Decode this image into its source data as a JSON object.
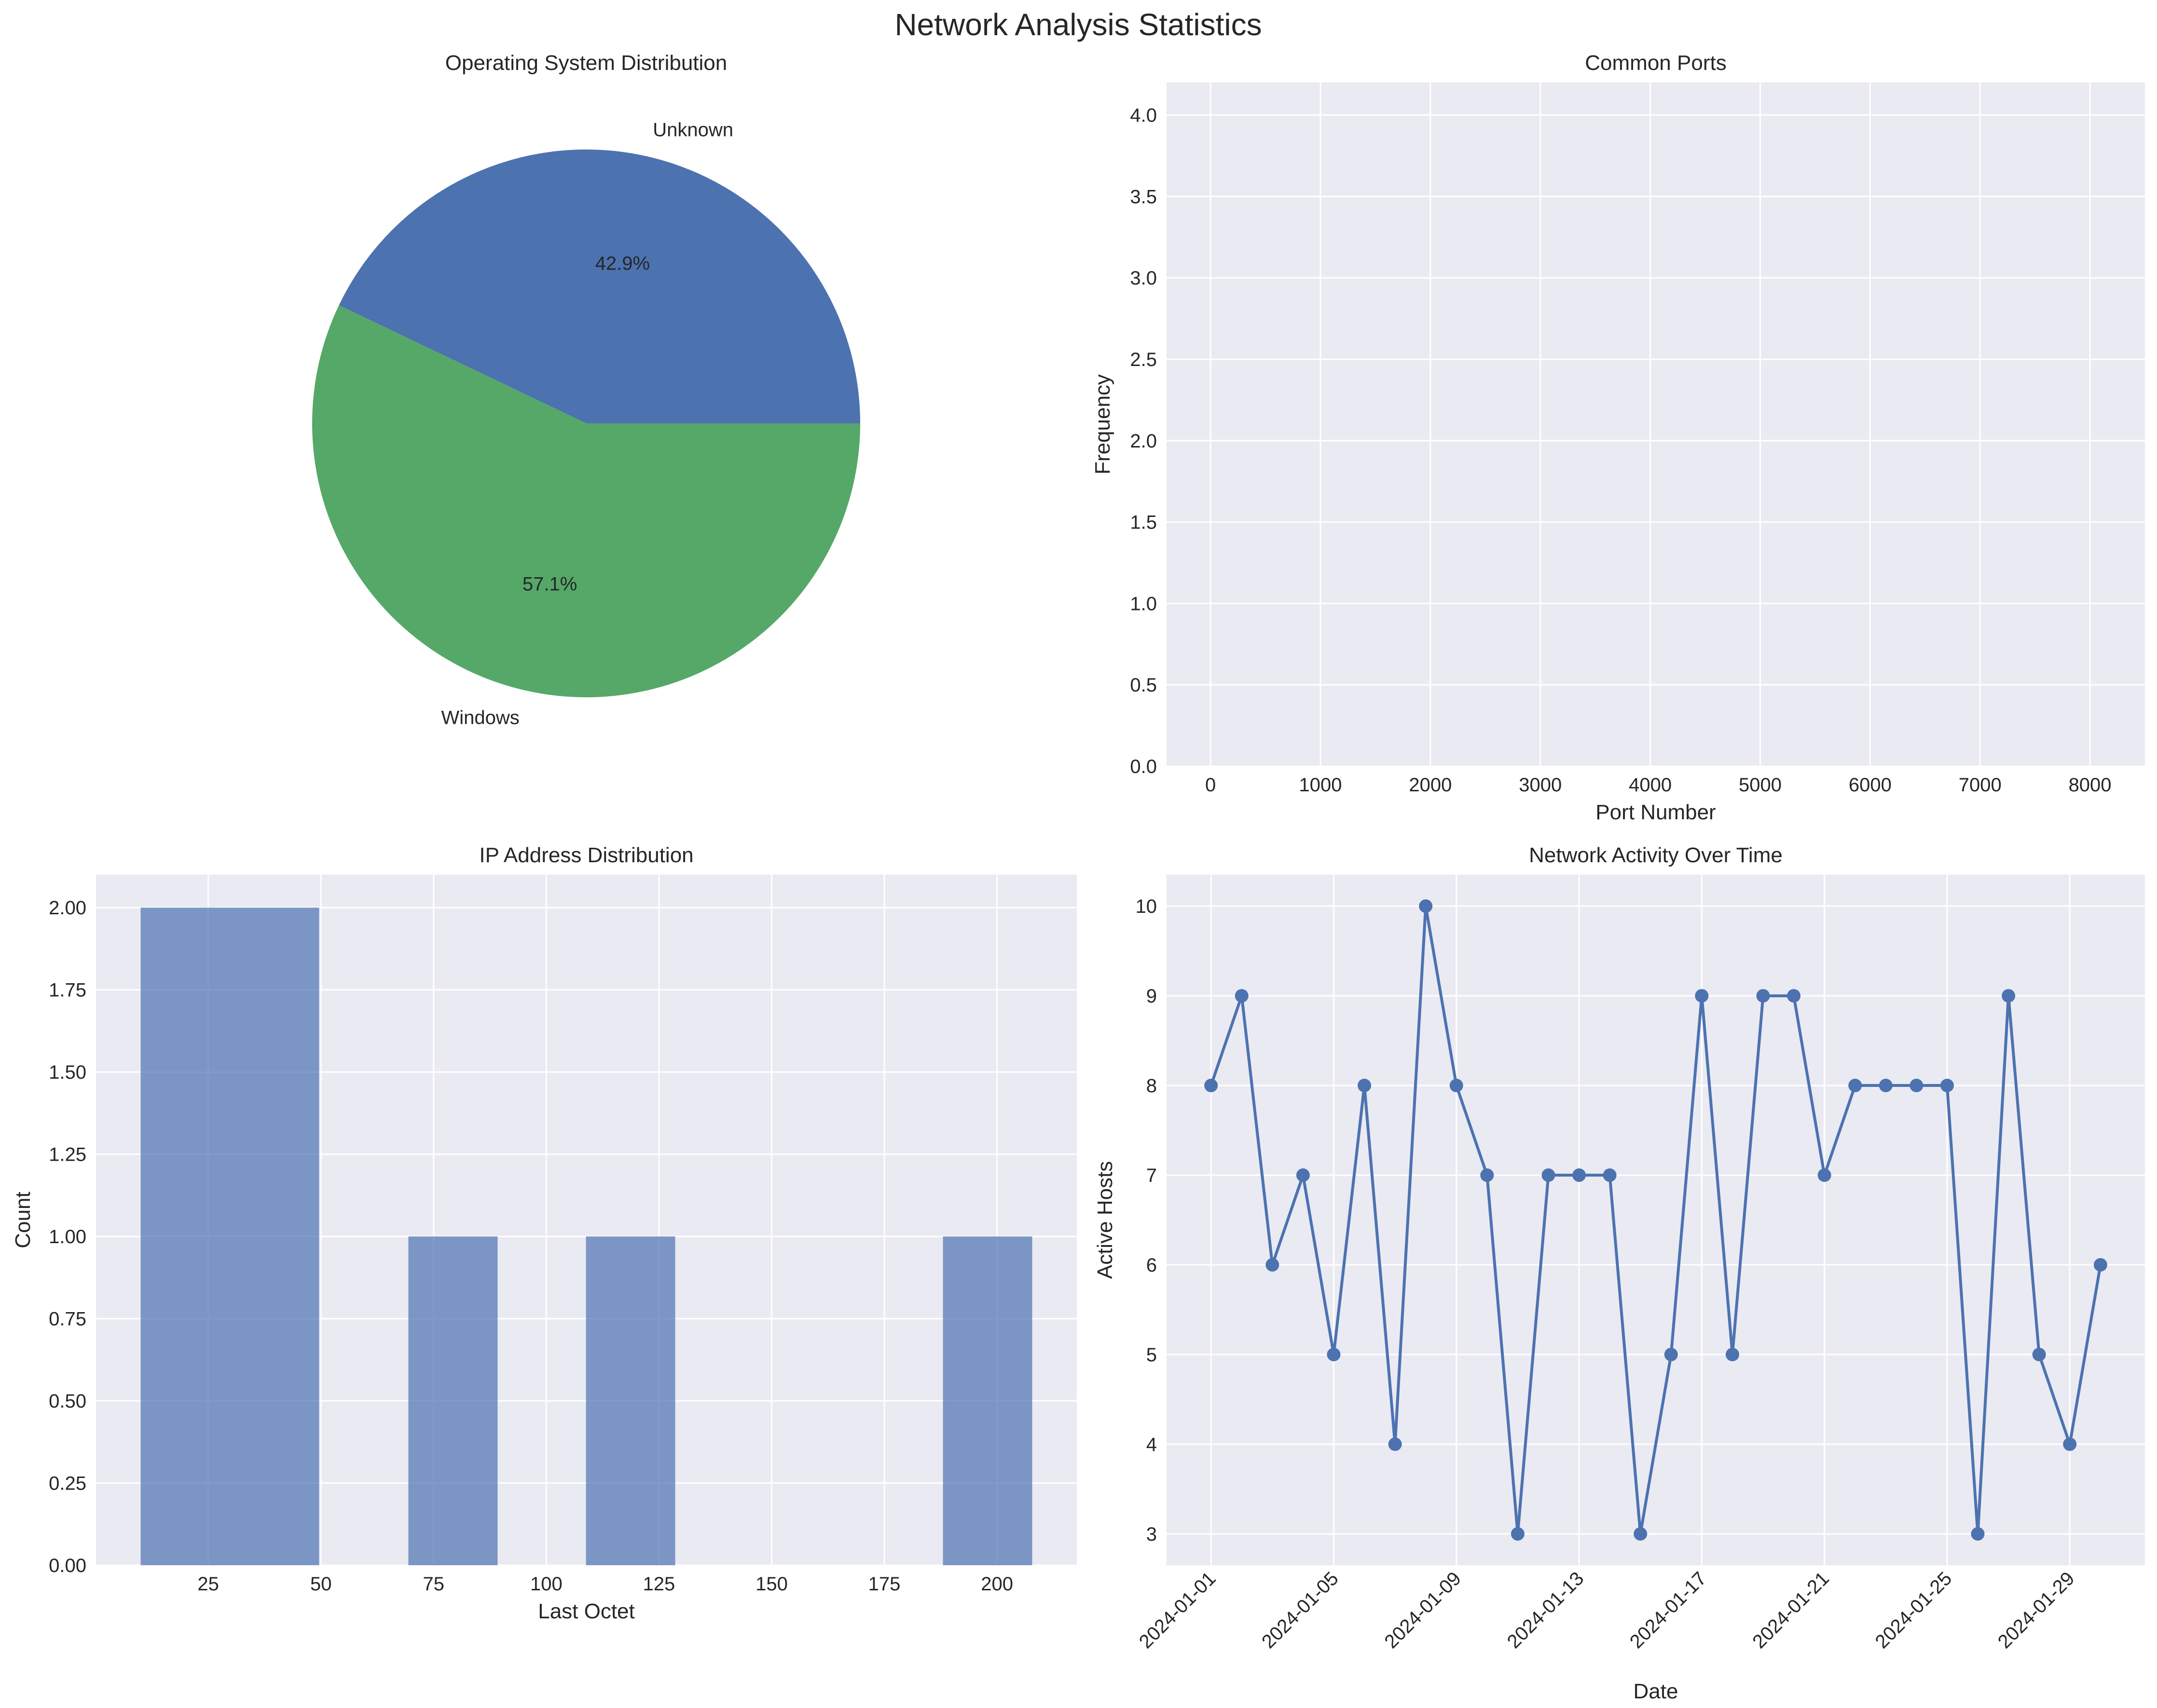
{
  "figure": {
    "title": "Network Analysis Statistics"
  },
  "colors": {
    "face": "#EAEAF2",
    "grid": "#FFFFFF",
    "blue": "#4C72B0",
    "green": "#55A868",
    "text": "#262626"
  },
  "chart_data": [
    {
      "type": "pie",
      "title": "Operating System Distribution",
      "labels": [
        "Unknown",
        "Windows"
      ],
      "values": [
        42.9,
        57.1
      ],
      "autopct": [
        "42.9%",
        "57.1%"
      ]
    },
    {
      "type": "bar",
      "title": "Common Ports",
      "xlabel": "Port Number",
      "ylabel": "Frequency",
      "categories": [],
      "values": [],
      "xlim": [
        -400,
        8500
      ],
      "ylim": [
        0,
        4.2
      ],
      "xticks": [
        "0",
        "1000",
        "2000",
        "3000",
        "4000",
        "5000",
        "6000",
        "7000",
        "8000"
      ],
      "yticks": [
        "0.0",
        "0.5",
        "1.0",
        "1.5",
        "2.0",
        "2.5",
        "3.0",
        "3.5",
        "4.0"
      ]
    },
    {
      "type": "bar",
      "title": "IP Address Distribution",
      "xlabel": "Last Octet",
      "ylabel": "Count",
      "bins": [
        [
          10,
          49.6
        ],
        [
          69.4,
          89.2
        ],
        [
          108.8,
          128.6
        ],
        [
          188,
          207.8
        ]
      ],
      "values": [
        2,
        1,
        1,
        1
      ],
      "xlim": [
        0.1,
        217.7
      ],
      "ylim": [
        0,
        2.1
      ],
      "xticks": [
        "25",
        "50",
        "75",
        "100",
        "125",
        "150",
        "175",
        "200"
      ],
      "yticks": [
        "0.00",
        "0.25",
        "0.50",
        "0.75",
        "1.00",
        "1.25",
        "1.50",
        "1.75",
        "2.00"
      ]
    },
    {
      "type": "line",
      "title": "Network Activity Over Time",
      "xlabel": "Date",
      "ylabel": "Active Hosts",
      "x_start": "2024-01-01",
      "values": [
        8,
        9,
        6,
        7,
        5,
        8,
        4,
        10,
        8,
        7,
        3,
        7,
        7,
        7,
        3,
        5,
        9,
        5,
        9,
        9,
        7,
        8,
        8,
        8,
        8,
        3,
        9,
        5,
        4,
        6
      ],
      "xticks": [
        "2024-01-01",
        "2024-01-05",
        "2024-01-09",
        "2024-01-13",
        "2024-01-17",
        "2024-01-21",
        "2024-01-25",
        "2024-01-29"
      ],
      "yticks": [
        "3",
        "4",
        "5",
        "6",
        "7",
        "8",
        "9",
        "10"
      ],
      "ylim": [
        2.65,
        10.35
      ]
    }
  ]
}
